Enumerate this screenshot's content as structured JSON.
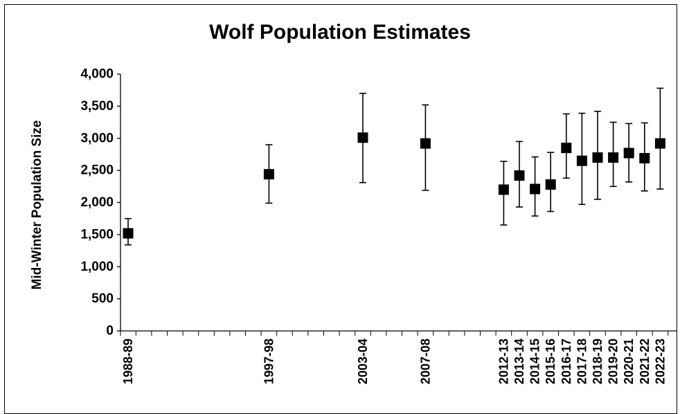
{
  "chart_data": {
    "type": "scatter",
    "title": "Wolf Population Estimates",
    "ylabel": "Mid-Winter Population Size",
    "xlabel": "",
    "ylim": [
      0,
      4000
    ],
    "yticks": [
      "0",
      "500",
      "1,000",
      "1,500",
      "2,000",
      "2,500",
      "3,000",
      "3,500",
      "4,000"
    ],
    "grid": false,
    "legend": "none",
    "marker": "square",
    "color": "#000000",
    "points": [
      {
        "label": "1988-89",
        "year": 1988,
        "y": 1520,
        "low": 1340,
        "high": 1750
      },
      {
        "label": "1997-98",
        "year": 1997,
        "y": 2440,
        "low": 1990,
        "high": 2900
      },
      {
        "label": "2003-04",
        "year": 2003,
        "y": 3010,
        "low": 2310,
        "high": 3700
      },
      {
        "label": "2007-08",
        "year": 2007,
        "y": 2920,
        "low": 2190,
        "high": 3520
      },
      {
        "label": "2012-13",
        "year": 2012,
        "y": 2200,
        "low": 1650,
        "high": 2640
      },
      {
        "label": "2013-14",
        "year": 2013,
        "y": 2420,
        "low": 1930,
        "high": 2950
      },
      {
        "label": "2014-15",
        "year": 2014,
        "y": 2210,
        "low": 1790,
        "high": 2710
      },
      {
        "label": "2015-16",
        "year": 2015,
        "y": 2280,
        "low": 1860,
        "high": 2780
      },
      {
        "label": "2016-17",
        "year": 2016,
        "y": 2850,
        "low": 2380,
        "high": 3380
      },
      {
        "label": "2017-18",
        "year": 2017,
        "y": 2650,
        "low": 1970,
        "high": 3390
      },
      {
        "label": "2018-19",
        "year": 2018,
        "y": 2700,
        "low": 2050,
        "high": 3420
      },
      {
        "label": "2019-20",
        "year": 2019,
        "y": 2700,
        "low": 2250,
        "high": 3250
      },
      {
        "label": "2020-21",
        "year": 2020,
        "y": 2770,
        "low": 2320,
        "high": 3230
      },
      {
        "label": "2021-22",
        "year": 2021,
        "y": 2690,
        "low": 2180,
        "high": 3240
      },
      {
        "label": "2022-23",
        "year": 2022,
        "y": 2920,
        "low": 2210,
        "high": 3780
      }
    ]
  }
}
